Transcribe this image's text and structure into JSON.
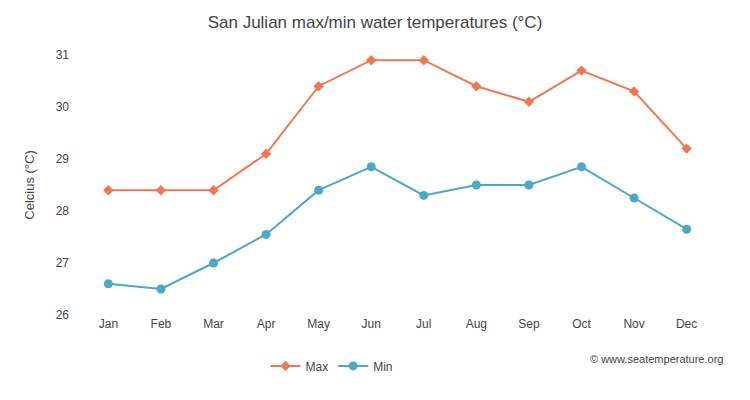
{
  "chart_data": {
    "type": "line",
    "title": "San Julian max/min water temperatures (°C)",
    "y_label": "Celcius (°C)",
    "categories": [
      "Jan",
      "Feb",
      "Mar",
      "Apr",
      "May",
      "Jun",
      "Jul",
      "Aug",
      "Sep",
      "Oct",
      "Nov",
      "Dec"
    ],
    "series": [
      {
        "name": "Max",
        "color": "#f07850",
        "marker": "diamond",
        "line_style": "solid",
        "values": [
          28.4,
          28.4,
          28.4,
          29.1,
          30.4,
          30.9,
          30.9,
          30.4,
          30.1,
          30.7,
          30.3,
          29.2
        ]
      },
      {
        "name": "Min",
        "color": "#4ba8c8",
        "marker": "circle",
        "line_style": "solid",
        "values": [
          26.6,
          26.5,
          27.0,
          27.55,
          28.4,
          28.85,
          28.3,
          28.5,
          28.5,
          28.85,
          28.25,
          27.65
        ]
      }
    ],
    "ylim": [
      26,
      31
    ],
    "yticks": [
      26,
      27,
      28,
      29,
      30,
      31
    ],
    "grid": false,
    "legend": "bottom",
    "annotations": [
      "© www.seatemperature.org"
    ]
  }
}
